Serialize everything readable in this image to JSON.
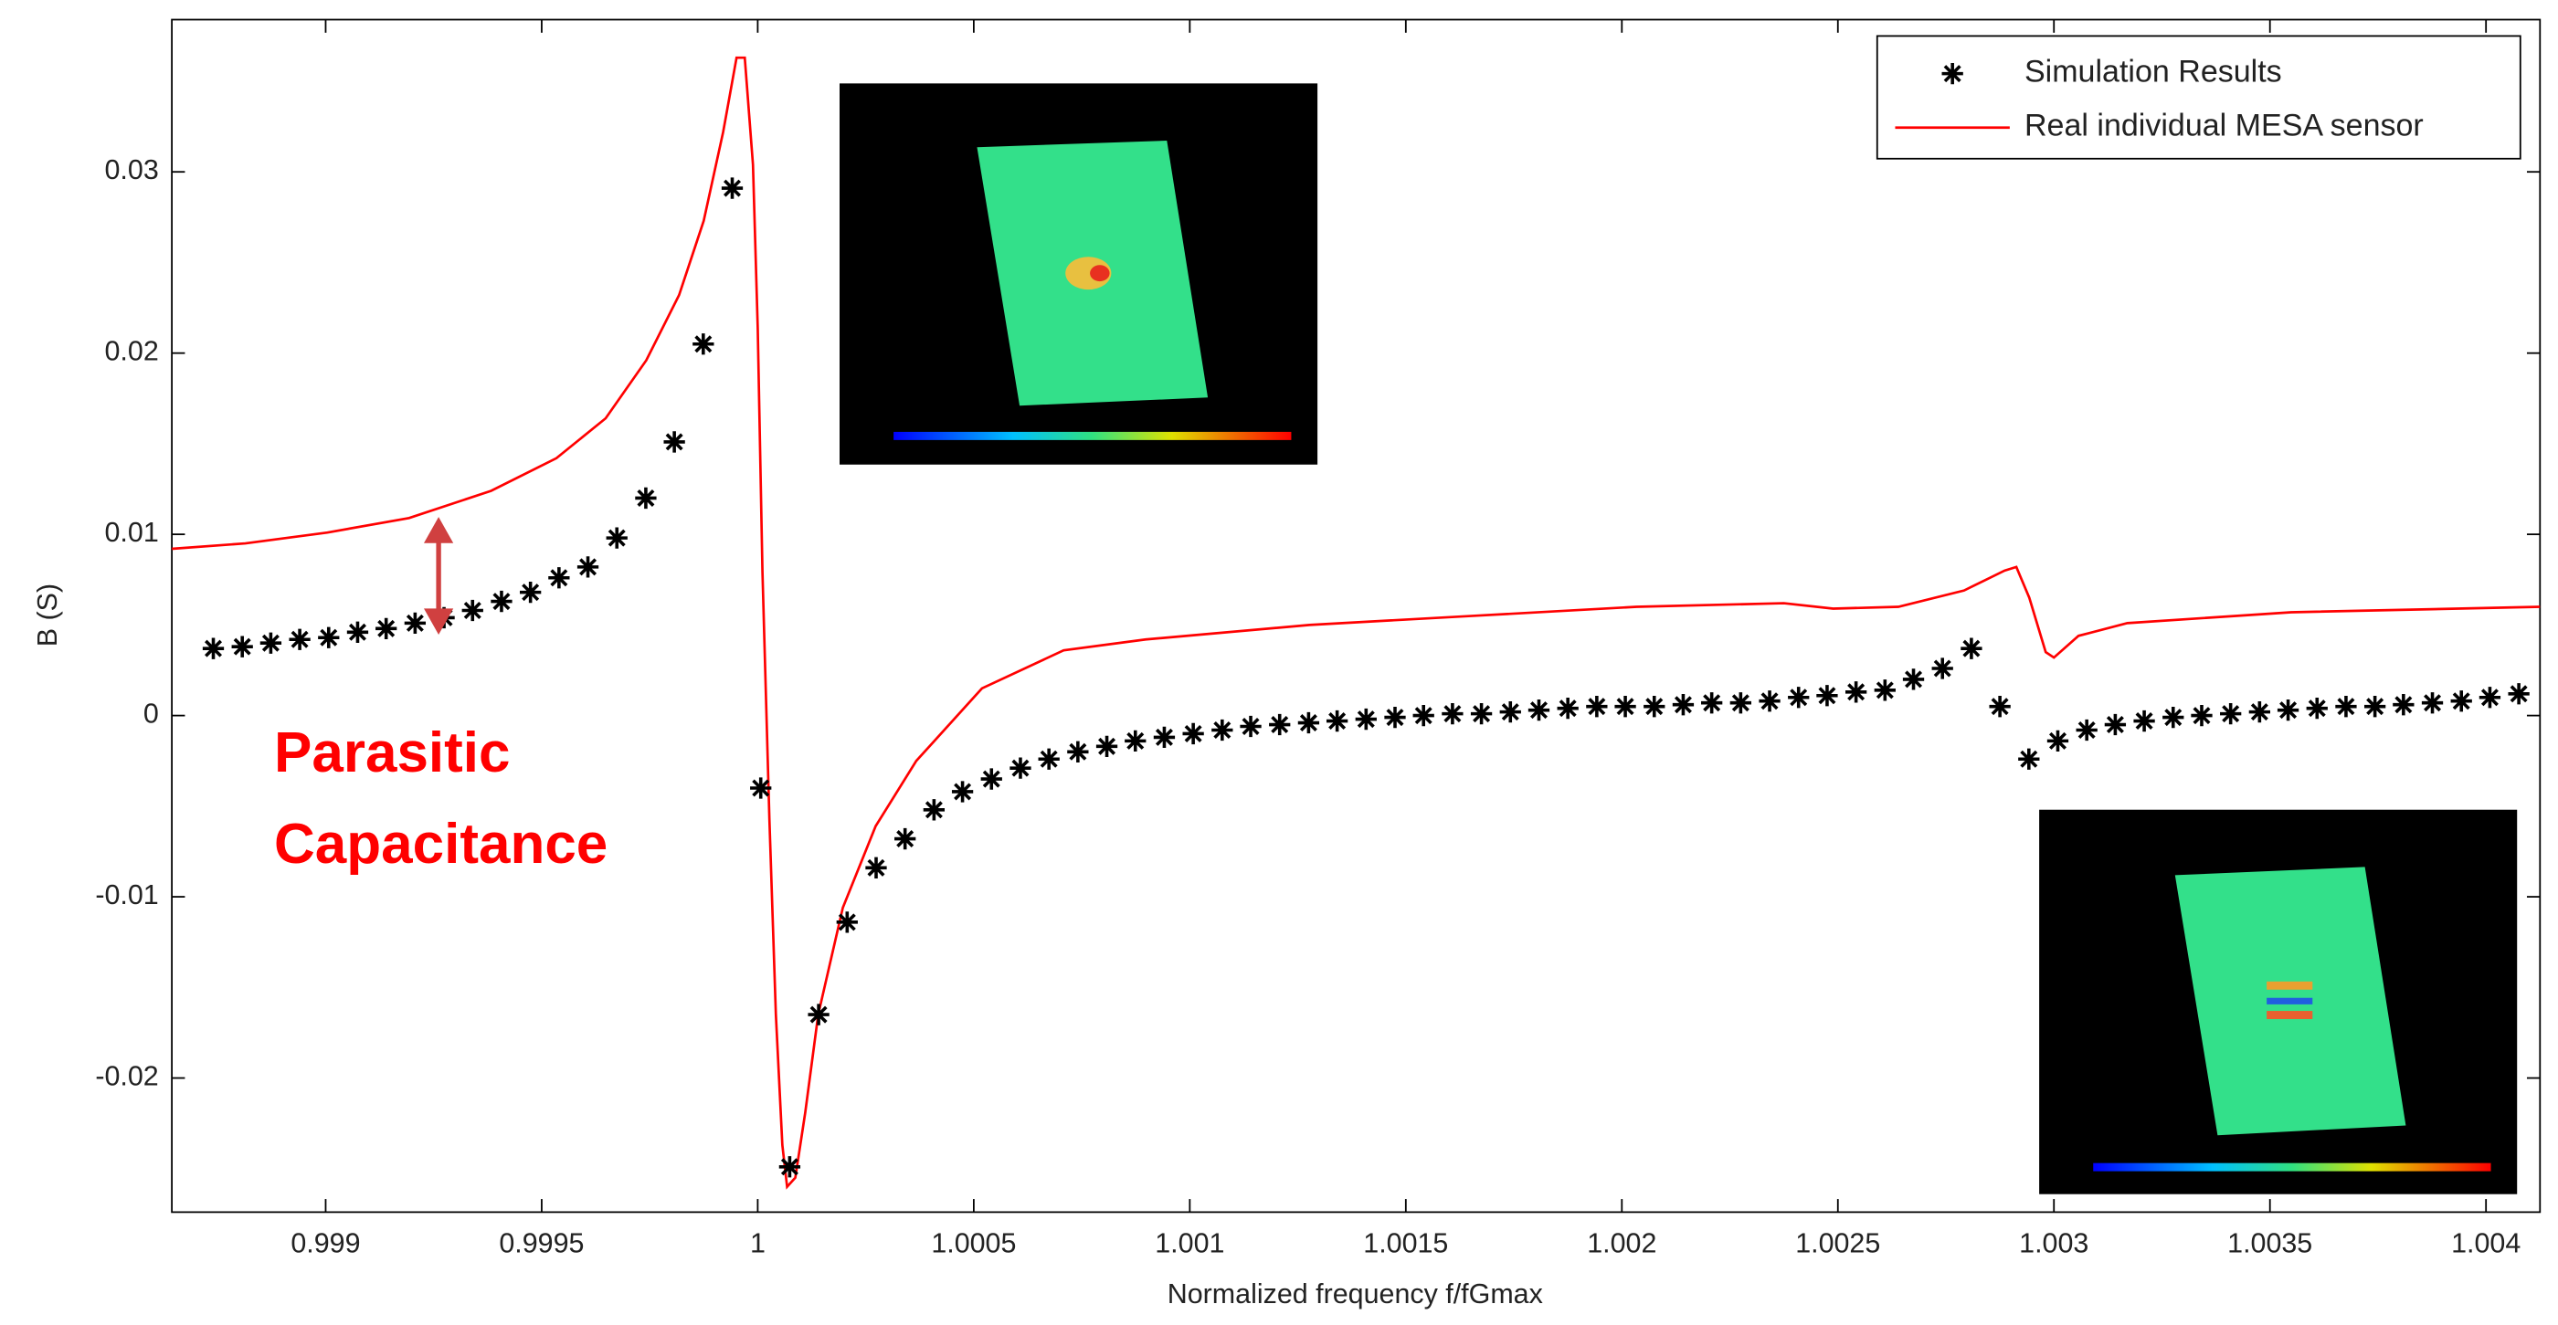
{
  "chart_data": {
    "type": "scatter",
    "xlabel": "Normalized frequency f/fGmax",
    "ylabel": "B (S)",
    "annotation": "Parasitic Capacitance",
    "annotation_color": "#ff0000",
    "legend": "upper right",
    "xlim": [
      0.998644,
      1.004125
    ],
    "ylim": [
      -0.0274,
      0.0384
    ],
    "xticks": [
      0.999,
      0.9995,
      1,
      1.0005,
      1.001,
      1.0015,
      1.002,
      1.0025,
      1.003,
      1.0035,
      1.004
    ],
    "yticks": [
      -0.02,
      -0.01,
      0,
      0.01,
      0.02,
      0.03
    ],
    "series": [
      {
        "name": "Simulation Results",
        "type": "scatter",
        "color": "#000000",
        "x": [
          0.99874,
          0.998807,
          0.998873,
          0.99894,
          0.999007,
          0.999074,
          0.99914,
          0.999207,
          0.999274,
          0.99934,
          0.999407,
          0.999474,
          0.99954,
          0.999607,
          0.999674,
          0.999741,
          0.999807,
          0.999874,
          0.999941,
          1.000007,
          1.000074,
          1.000141,
          1.000207,
          1.000274,
          1.000341,
          1.000408,
          1.000474,
          1.000541,
          1.000608,
          1.000674,
          1.000741,
          1.000808,
          1.000874,
          1.000941,
          1.001008,
          1.001075,
          1.001141,
          1.001208,
          1.001275,
          1.001341,
          1.001408,
          1.001475,
          1.001541,
          1.001608,
          1.001675,
          1.001742,
          1.001808,
          1.001875,
          1.001942,
          1.002008,
          1.002075,
          1.002142,
          1.002208,
          1.002275,
          1.002342,
          1.002409,
          1.002475,
          1.002542,
          1.002609,
          1.002675,
          1.002742,
          1.002809,
          1.002875,
          1.002942,
          1.003009,
          1.003076,
          1.003142,
          1.003209,
          1.003276,
          1.003342,
          1.003409,
          1.003476,
          1.003542,
          1.003609,
          1.003676,
          1.003743,
          1.003809,
          1.003876,
          1.003943,
          1.004009,
          1.004076
        ],
        "values": [
          0.0037,
          0.0038,
          0.004,
          0.0042,
          0.0043,
          0.0046,
          0.0048,
          0.0051,
          0.0054,
          0.0058,
          0.0063,
          0.0068,
          0.0076,
          0.0082,
          0.0098,
          0.012,
          0.0151,
          0.0205,
          0.0291,
          -0.004,
          -0.0249,
          -0.0165,
          -0.0114,
          -0.0084,
          -0.0068,
          -0.0052,
          -0.0042,
          -0.0035,
          -0.0029,
          -0.0024,
          -0.002,
          -0.0017,
          -0.0014,
          -0.0012,
          -0.001,
          -0.0008,
          -0.0006,
          -0.0005,
          -0.0004,
          -0.0003,
          -0.0002,
          -0.0001,
          0.0,
          0.0001,
          0.0001,
          0.0002,
          0.0003,
          0.0004,
          0.0005,
          0.0005,
          0.0005,
          0.0006,
          0.0007,
          0.0007,
          0.0008,
          0.001,
          0.0011,
          0.0013,
          0.0014,
          0.002,
          0.0026,
          0.0037,
          0.0005,
          -0.0024,
          -0.0014,
          -0.0008,
          -0.0005,
          -0.0003,
          -0.0001,
          0.0,
          0.0001,
          0.0002,
          0.0003,
          0.0004,
          0.0005,
          0.0005,
          0.0006,
          0.0007,
          0.0008,
          0.001,
          0.0012
        ]
      },
      {
        "name": "Real individual MESA sensor",
        "type": "line",
        "color": "#ff0000",
        "x": [
          0.998644,
          0.998814,
          0.999004,
          0.999193,
          0.999383,
          0.999534,
          0.999648,
          0.999742,
          0.999818,
          0.999875,
          0.99992,
          0.999951,
          0.99997,
          0.999989,
          1.0,
          1.000011,
          1.000027,
          1.000042,
          1.000057,
          1.000068,
          1.000087,
          1.00011,
          1.00014,
          1.000197,
          1.000273,
          1.000367,
          1.000519,
          1.000708,
          1.000898,
          1.001277,
          1.001655,
          1.002034,
          1.002375,
          1.002489,
          1.00264,
          1.002792,
          1.002886,
          1.002913,
          1.002943,
          1.002981,
          1.003,
          1.003057,
          1.00317,
          1.003549,
          1.004125
        ],
        "values": [
          0.0092,
          0.0095,
          0.0101,
          0.0109,
          0.0124,
          0.0142,
          0.0164,
          0.0196,
          0.0232,
          0.0273,
          0.0322,
          0.0363,
          0.0363,
          0.0304,
          0.0214,
          0.0079,
          -0.0057,
          -0.0165,
          -0.0237,
          -0.026,
          -0.0255,
          -0.0219,
          -0.0165,
          -0.0106,
          -0.0061,
          -0.0025,
          0.0015,
          0.0036,
          0.0042,
          0.005,
          0.0055,
          0.006,
          0.0062,
          0.0059,
          0.006,
          0.0069,
          0.008,
          0.0082,
          0.0065,
          0.0035,
          0.0032,
          0.0044,
          0.0051,
          0.0057,
          0.006
        ]
      }
    ]
  }
}
